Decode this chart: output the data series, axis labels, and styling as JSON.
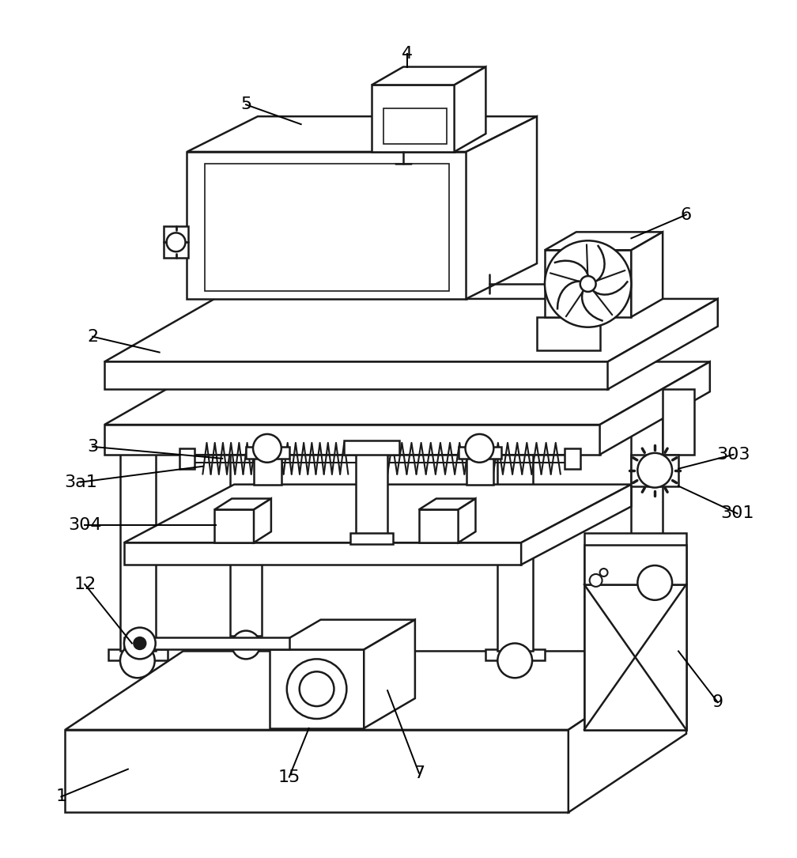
{
  "figure_width": 10.08,
  "figure_height": 10.85,
  "dpi": 100,
  "bg_color": "#ffffff",
  "line_color": "#1a1a1a",
  "line_width": 1.8
}
